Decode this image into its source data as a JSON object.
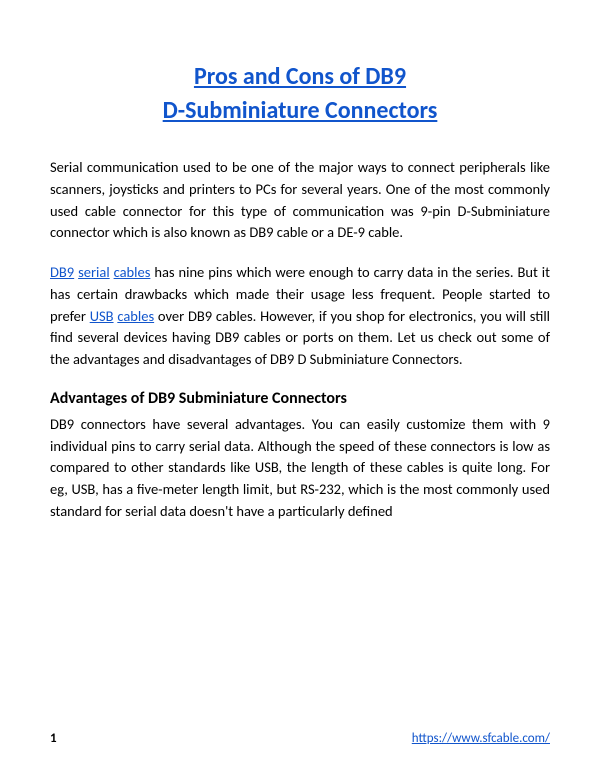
{
  "document": {
    "title_line1": "Pros and Cons of DB9",
    "title_line2": "D-Subminiature Connectors",
    "title_color": "#1155cc",
    "title_fontsize": 24,
    "paragraph1": "Serial communication used to be one of the major ways to connect peripherals like scanners, joysticks and printers to PCs for several years. One of the most commonly used cable connector for this type of communication was 9-pin D-Subminiature connector which is also known as DB9 cable or a DE-9 cable.",
    "paragraph2_part1": "DB9",
    "paragraph2_part2": " ",
    "paragraph2_part3": "serial",
    "paragraph2_part4": " ",
    "paragraph2_part5": "cables",
    "paragraph2_part6": " has nine pins which were enough to carry data in the series. But it has certain drawbacks which made their usage less frequent. People started to prefer ",
    "paragraph2_part7": "USB",
    "paragraph2_part8": " ",
    "paragraph2_part9": "cables",
    "paragraph2_part10": " over DB9 cables. However, if you shop for electronics, you will still find several devices having DB9 cables or ports on them. Let us check out some of the advantages and disadvantages of DB9 D Subminiature Connectors.",
    "subheading1": "Advantages of DB9 Subminiature Connectors",
    "paragraph3": "DB9 connectors have several advantages. You can easily customize them with 9 individual pins to carry serial data. Although the speed of these connectors is low as compared to other standards like USB, the length of these cables is quite long. For eg, USB, has a five-meter length limit, but RS-232, which is the most commonly used standard for serial data doesn't have a particularly defined",
    "link_color": "#1155cc",
    "body_fontsize": 14.5,
    "subheading_fontsize": 16
  },
  "footer": {
    "page_number": "1",
    "url": "https://www.sfcable.com/"
  }
}
